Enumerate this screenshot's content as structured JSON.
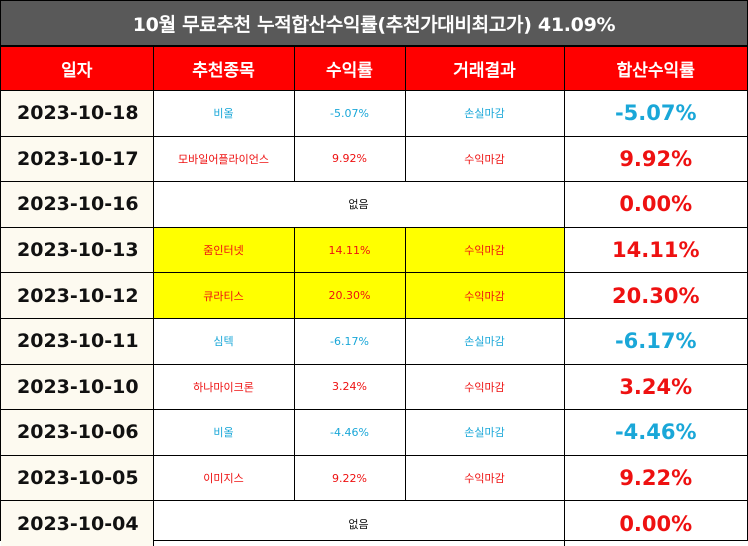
{
  "title": "10월 무료추천 누적합산수익률(추천가대비최고가) 41.09%",
  "headers": [
    "일자",
    "추천종목",
    "수익률",
    "거래결과",
    "합산수익률"
  ],
  "colors": {
    "header_bg": "#ff0000",
    "title_bg": "#595959",
    "loss": "#1aa7d8",
    "gain": "#ee1111",
    "highlight": "#ffff00"
  },
  "rows": [
    {
      "date": "2023-10-18",
      "stock": "비올",
      "return": "-5.07%",
      "result": "손실마감",
      "cumulative": "-5.07%"
    },
    {
      "date": "2023-10-17",
      "stock": "모바일어플라이언스",
      "return": "9.92%",
      "result": "수익마감",
      "cumulative": "9.92%"
    },
    {
      "date": "2023-10-16",
      "none_text": "없음",
      "cumulative": "0.00%"
    },
    {
      "date": "2023-10-13",
      "stock": "줌인터넷",
      "return": "14.11%",
      "result": "수익마감",
      "cumulative": "14.11%"
    },
    {
      "date": "2023-10-12",
      "stock": "큐라티스",
      "return": "20.30%",
      "result": "수익마감",
      "cumulative": "20.30%"
    },
    {
      "date": "2023-10-11",
      "stock": "심텍",
      "return": "-6.17%",
      "result": "손실마감",
      "cumulative": "-6.17%"
    },
    {
      "date": "2023-10-10",
      "stock": "하나마이크론",
      "return": "3.24%",
      "result": "수익마감",
      "cumulative": "3.24%"
    },
    {
      "date": "2023-10-06",
      "stock": "비올",
      "return": "-4.46%",
      "result": "손실마감",
      "cumulative": "-4.46%"
    },
    {
      "date": "2023-10-05",
      "stock": "이미지스",
      "return": "9.22%",
      "result": "수익마감",
      "cumulative": "9.22%"
    },
    {
      "date": "2023-10-04",
      "none_text": "없음",
      "cumulative": "0.00%"
    }
  ]
}
